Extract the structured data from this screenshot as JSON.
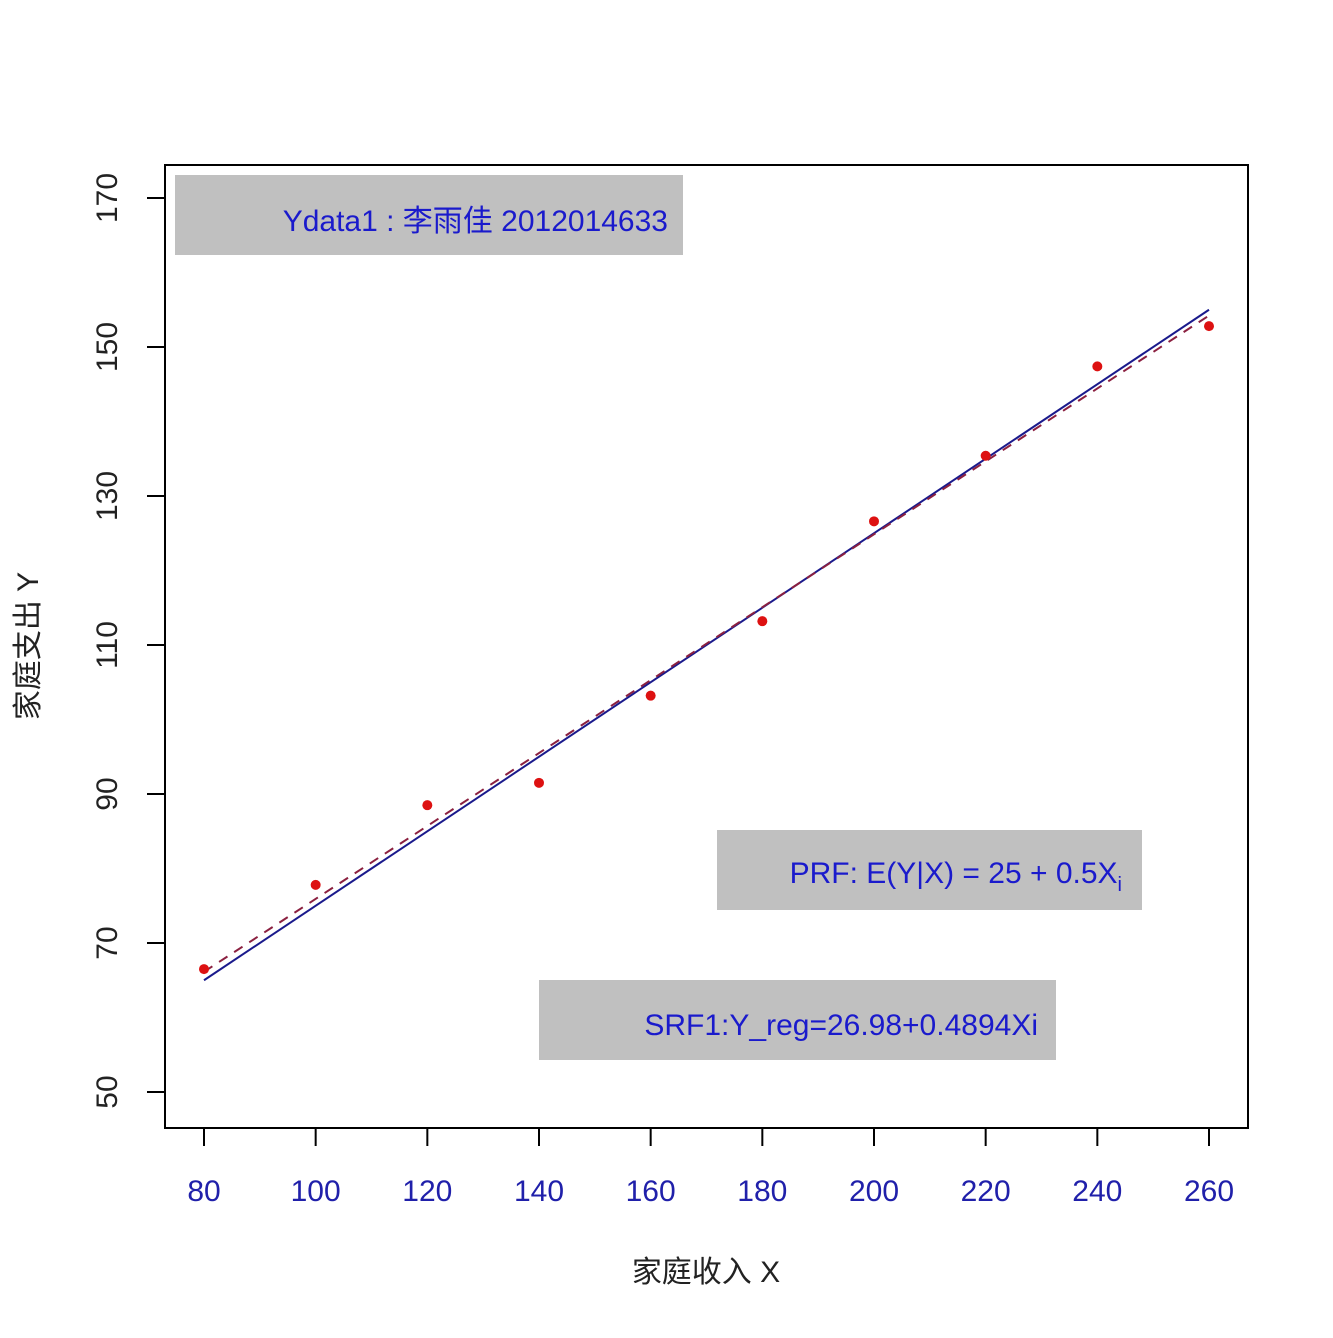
{
  "chart_data": {
    "type": "scatter",
    "title": "",
    "xlabel": "家庭收入 X",
    "ylabel": "家庭支出 Y",
    "xlim": [
      73,
      267
    ],
    "ylim": [
      46,
      174
    ],
    "xticks": [
      80,
      100,
      120,
      140,
      160,
      180,
      200,
      220,
      240,
      260
    ],
    "yticks": [
      50,
      70,
      90,
      110,
      130,
      150,
      170
    ],
    "grid": false,
    "points": {
      "name": "Ydata1",
      "x": [
        80,
        100,
        120,
        140,
        160,
        180,
        200,
        220,
        240,
        260
      ],
      "y": [
        66.5,
        77.8,
        88.5,
        91.5,
        103.2,
        113.2,
        126.6,
        135.4,
        147.4,
        152.8
      ],
      "color": "#dd1111"
    },
    "lines": [
      {
        "name": "PRF",
        "intercept": 25,
        "slope": 0.5,
        "style": "solid",
        "color": "#1a1a8c"
      },
      {
        "name": "SRF1",
        "intercept": 26.98,
        "slope": 0.4894,
        "style": "dashed",
        "color": "#8b2040"
      }
    ],
    "annotations": [
      {
        "key": "ydata",
        "text": "Ydata1 : 李雨佳 2012014633"
      },
      {
        "key": "prf",
        "text": "PRF: E(Y|X) = 25 + 0.5X",
        "subscript": "i"
      },
      {
        "key": "srf",
        "text": "SRF1:Y_reg=26.98+0.4894Xi"
      }
    ],
    "colors": {
      "annotation_text": "#1a1acc",
      "annotation_bg": "#c0c0c0",
      "xtick_text": "#2020aa"
    }
  }
}
